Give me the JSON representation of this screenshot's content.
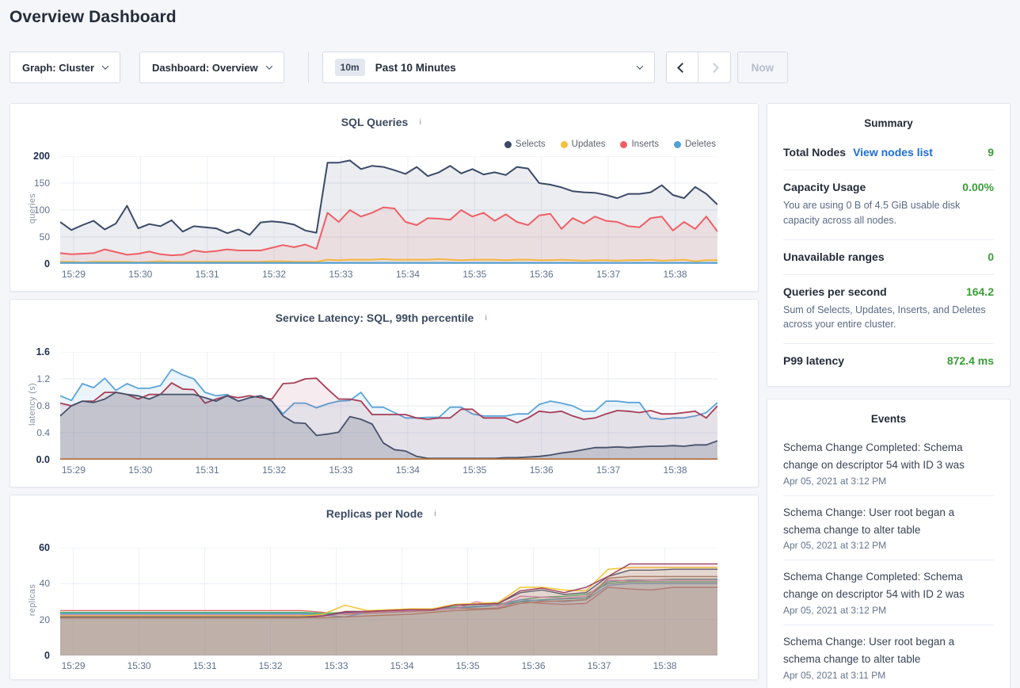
{
  "page": {
    "title": "Overview Dashboard"
  },
  "toolbar": {
    "graph_label": "Graph: Cluster",
    "dashboard_label": "Dashboard: Overview",
    "time_badge": "10m",
    "time_label": "Past 10 Minutes",
    "now_label": "Now"
  },
  "icons": {
    "info": "i"
  },
  "summary": {
    "title": "Summary",
    "rows": [
      {
        "label": "Total Nodes",
        "link": "View nodes list",
        "value": "9"
      },
      {
        "label": "Capacity Usage",
        "value": "0.00%",
        "caption": "You are using 0 B of 4.5 GiB usable disk capacity across all nodes."
      },
      {
        "label": "Unavailable ranges",
        "value": "0"
      },
      {
        "label": "Queries per second",
        "value": "164.2",
        "caption": "Sum of Selects, Updates, Inserts, and Deletes across your entire cluster."
      },
      {
        "label": "P99 latency",
        "value": "872.4 ms"
      }
    ]
  },
  "events": {
    "title": "Events",
    "items": [
      {
        "text": "Schema Change Completed: Schema change on descriptor 54 with ID 3 was",
        "time": "Apr 05, 2021 at 3:12 PM"
      },
      {
        "text": "Schema Change: User root began a schema change to alter table",
        "time": "Apr 05, 2021 at 3:12 PM"
      },
      {
        "text": "Schema Change Completed: Schema change on descriptor 54 with ID 2 was",
        "time": "Apr 05, 2021 at 3:12 PM"
      },
      {
        "text": "Schema Change: User root began a schema change to alter table",
        "time": "Apr 05, 2021 at 3:11 PM"
      }
    ]
  },
  "chart_data": [
    {
      "type": "area",
      "title": "SQL Queries",
      "ylabel": "queries",
      "ylim": [
        0,
        200
      ],
      "yticks": [
        "200",
        "150",
        "100",
        "50",
        "0"
      ],
      "xticks": [
        "15:29",
        "15:30",
        "15:31",
        "15:32",
        "15:33",
        "15:34",
        "15:35",
        "15:36",
        "15:37",
        "15:38"
      ],
      "x_interval_seconds": 10,
      "grid": true,
      "legend": true,
      "legend_position": "top-right",
      "stroke_width": 2,
      "series": [
        {
          "name": "Selects",
          "color": "#3b4a67",
          "fo": 0.1,
          "values": [
            78,
            63,
            72,
            80,
            64,
            75,
            108,
            66,
            74,
            70,
            81,
            60,
            70,
            68,
            66,
            57,
            64,
            54,
            77,
            79,
            77,
            73,
            62,
            58,
            188,
            188,
            192,
            176,
            182,
            180,
            174,
            167,
            180,
            163,
            170,
            182,
            168,
            176,
            166,
            170,
            165,
            180,
            177,
            150,
            147,
            142,
            135,
            133,
            132,
            128,
            122,
            130,
            130,
            133,
            146,
            128,
            122,
            143,
            130,
            110
          ]
        },
        {
          "name": "Updates",
          "color": "#f5c13c",
          "fo": 0.05,
          "values": [
            4,
            4,
            3,
            4,
            4,
            4,
            4,
            3,
            4,
            5,
            4,
            4,
            4,
            4,
            4,
            4,
            4,
            4,
            4,
            5,
            5,
            4,
            4,
            4,
            8,
            7,
            8,
            8,
            8,
            9,
            8,
            8,
            8,
            8,
            9,
            8,
            7,
            8,
            8,
            8,
            7,
            8,
            8,
            7,
            7,
            8,
            7,
            6,
            7,
            7,
            6,
            7,
            7,
            8,
            6,
            7,
            8,
            5,
            7,
            7
          ]
        },
        {
          "name": "Inserts",
          "color": "#ee5f66",
          "fo": 0.1,
          "values": [
            20,
            18,
            19,
            20,
            27,
            22,
            17,
            19,
            23,
            18,
            16,
            17,
            25,
            22,
            24,
            27,
            25,
            25,
            25,
            30,
            35,
            31,
            36,
            28,
            95,
            78,
            100,
            88,
            95,
            105,
            103,
            78,
            72,
            85,
            84,
            82,
            100,
            88,
            95,
            80,
            92,
            78,
            72,
            90,
            93,
            65,
            85,
            75,
            88,
            80,
            78,
            70,
            68,
            85,
            88,
            62,
            78,
            65,
            88,
            60
          ]
        },
        {
          "name": "Deletes",
          "color": "#4ea2d9",
          "fo": 0.05,
          "values": [
            2,
            2,
            2,
            2,
            2,
            2,
            2,
            2,
            2,
            2,
            2,
            2,
            2,
            2,
            2,
            2,
            2,
            2,
            2,
            2,
            2,
            2,
            2,
            2,
            2,
            2,
            2,
            2,
            2,
            2,
            2,
            2,
            2,
            2,
            2,
            2,
            2,
            2,
            2,
            2,
            2,
            2,
            2,
            2,
            2,
            2,
            2,
            2,
            2,
            2,
            2,
            2,
            2,
            2,
            2,
            2,
            2,
            2,
            2,
            2
          ]
        }
      ]
    },
    {
      "type": "area",
      "title": "Service Latency: SQL, 99th percentile",
      "ylabel": "latency (s)",
      "ylim": [
        0,
        1.6
      ],
      "yticks": [
        "1.6",
        "1.2",
        "0.8",
        "0.4",
        "0.0"
      ],
      "xticks": [
        "15:29",
        "15:30",
        "15:31",
        "15:32",
        "15:33",
        "15:34",
        "15:35",
        "15:36",
        "15:37",
        "15:38"
      ],
      "x_interval_seconds": 10,
      "grid": true,
      "legend": false,
      "stroke_width": 1.8,
      "series": [
        {
          "name": "s1",
          "color": "#5ba3d9",
          "fo": 0.12,
          "values": [
            0.95,
            0.88,
            1.13,
            1.07,
            1.21,
            1.03,
            1.13,
            1.06,
            1.06,
            1.1,
            1.34,
            1.26,
            1.2,
            1.0,
            0.95,
            0.97,
            0.87,
            0.92,
            0.95,
            0.87,
            0.68,
            0.84,
            0.84,
            0.77,
            0.83,
            0.87,
            0.88,
            1.0,
            0.78,
            0.78,
            0.7,
            0.62,
            0.62,
            0.63,
            0.63,
            0.78,
            0.78,
            0.68,
            0.65,
            0.65,
            0.65,
            0.68,
            0.68,
            0.82,
            0.87,
            0.84,
            0.8,
            0.72,
            0.72,
            0.87,
            0.87,
            0.85,
            0.85,
            0.62,
            0.6,
            0.62,
            0.62,
            0.65,
            0.7,
            0.85
          ]
        },
        {
          "name": "s2",
          "color": "#a63e56",
          "fo": 0.1,
          "values": [
            0.84,
            0.8,
            0.87,
            0.87,
            1.0,
            1.0,
            0.97,
            0.9,
            0.97,
            0.97,
            1.14,
            1.05,
            1.04,
            0.84,
            0.9,
            0.95,
            0.92,
            0.95,
            0.92,
            0.9,
            1.13,
            1.14,
            1.2,
            1.21,
            1.05,
            0.9,
            0.9,
            0.87,
            0.67,
            0.67,
            0.67,
            0.67,
            0.62,
            0.6,
            0.62,
            0.62,
            0.75,
            0.75,
            0.62,
            0.62,
            0.62,
            0.55,
            0.62,
            0.72,
            0.7,
            0.72,
            0.65,
            0.6,
            0.62,
            0.68,
            0.73,
            0.72,
            0.7,
            0.73,
            0.68,
            0.68,
            0.7,
            0.72,
            0.62,
            0.8
          ]
        },
        {
          "name": "s3",
          "color": "#46526b",
          "fo": 0.2,
          "values": [
            0.65,
            0.8,
            0.87,
            0.85,
            0.9,
            1.0,
            0.97,
            0.95,
            0.9,
            0.97,
            0.97,
            0.97,
            0.97,
            0.92,
            0.87,
            0.95,
            0.87,
            0.92,
            0.95,
            0.87,
            0.65,
            0.55,
            0.54,
            0.36,
            0.38,
            0.41,
            0.64,
            0.6,
            0.53,
            0.25,
            0.15,
            0.13,
            0.05,
            0.02,
            0.02,
            0.02,
            0.02,
            0.02,
            0.02,
            0.02,
            0.03,
            0.03,
            0.04,
            0.05,
            0.07,
            0.1,
            0.12,
            0.15,
            0.18,
            0.18,
            0.19,
            0.18,
            0.19,
            0.2,
            0.2,
            0.21,
            0.2,
            0.22,
            0.22,
            0.28
          ]
        },
        {
          "name": "s4",
          "color": "#b5743f",
          "fo": 0,
          "values": [
            0.01,
            0.01,
            0.01,
            0.01,
            0.01,
            0.01,
            0.01,
            0.01,
            0.01,
            0.01,
            0.01,
            0.01,
            0.01,
            0.01,
            0.01,
            0.01,
            0.01,
            0.01,
            0.01,
            0.01,
            0.01,
            0.01,
            0.01,
            0.01,
            0.01,
            0.01,
            0.01,
            0.01,
            0.01,
            0.01,
            0.01,
            0.01,
            0.01,
            0.01,
            0.01,
            0.01,
            0.01,
            0.01,
            0.01,
            0.01,
            0.01,
            0.01,
            0.01,
            0.01,
            0.01,
            0.01,
            0.01,
            0.01,
            0.01,
            0.01,
            0.01,
            0.01,
            0.01,
            0.01,
            0.01,
            0.01,
            0.01,
            0.01,
            0.01,
            0.01
          ]
        }
      ]
    },
    {
      "type": "area",
      "title": "Replicas per Node",
      "ylabel": "replicas",
      "ylim": [
        0,
        60
      ],
      "yticks": [
        "60",
        "40",
        "20",
        "0"
      ],
      "xticks": [
        "15:29",
        "15:30",
        "15:31",
        "15:32",
        "15:33",
        "15:34",
        "15:35",
        "15:36",
        "15:37",
        "15:38"
      ],
      "x_interval_seconds": 20,
      "grid": true,
      "legend": false,
      "stroke_width": 1.4,
      "series": [
        {
          "name": "n1",
          "color": "#e06c6c",
          "fo": 0.1,
          "values": [
            25,
            25,
            25,
            25,
            25,
            25,
            25,
            25,
            25,
            25,
            25,
            25,
            24,
            23,
            23.5,
            24,
            24.5,
            25,
            26.5,
            26,
            26.5,
            30,
            29,
            28.5,
            29,
            38,
            37,
            36.5,
            38,
            38,
            38
          ]
        },
        {
          "name": "n2",
          "color": "#56b56d",
          "fo": 0.1,
          "values": [
            24,
            24,
            24,
            24,
            24,
            24,
            24,
            24,
            24,
            24,
            24,
            24,
            23.5,
            24,
            24.5,
            25,
            25.5,
            26,
            27,
            27.5,
            28.5,
            31,
            32.5,
            33,
            34,
            40,
            41,
            41,
            41,
            41,
            41
          ]
        },
        {
          "name": "n3",
          "color": "#47a8a2",
          "fo": 0.1,
          "values": [
            23.5,
            23.5,
            23.5,
            23.5,
            23.5,
            23.5,
            23.5,
            23.5,
            23.5,
            23.5,
            23.5,
            23.5,
            23,
            23.5,
            24,
            24.5,
            25,
            25.5,
            26.5,
            27,
            28,
            30,
            31,
            31.5,
            32,
            41,
            42,
            42,
            42.5,
            42.5,
            42.5
          ]
        },
        {
          "name": "n4",
          "color": "#6e9fd0",
          "fo": 0.1,
          "values": [
            23,
            23,
            23,
            23,
            23,
            23,
            23,
            23,
            23,
            23,
            23,
            23,
            22.5,
            21.5,
            24,
            24.5,
            25,
            25.5,
            26.5,
            27.5,
            28,
            31,
            30.5,
            30,
            31,
            39,
            40,
            40,
            40,
            40,
            40
          ]
        },
        {
          "name": "n5",
          "color": "#e08bbf",
          "fo": 0.1,
          "values": [
            22.5,
            22.5,
            22.5,
            22.5,
            22.5,
            22.5,
            22.5,
            22.5,
            22.5,
            22.5,
            22.5,
            22.5,
            22,
            23.5,
            24,
            24.5,
            25,
            25.5,
            26,
            30,
            27.5,
            33,
            32.5,
            32,
            33,
            42,
            41.5,
            42,
            42,
            42,
            42
          ]
        },
        {
          "name": "n6",
          "color": "#f2c029",
          "fo": 0.1,
          "values": [
            22,
            22,
            22,
            22,
            22,
            22,
            22,
            22,
            22,
            22,
            22,
            22,
            23,
            28,
            25,
            25.5,
            26,
            26,
            28.5,
            29,
            29.5,
            38,
            38,
            36.5,
            36,
            48,
            49,
            49,
            49,
            49,
            49
          ]
        },
        {
          "name": "n7",
          "color": "#5a6472",
          "fo": 0.1,
          "values": [
            21.5,
            21.5,
            21.5,
            21.5,
            21.5,
            21.5,
            21.5,
            21.5,
            21.5,
            21.5,
            21.5,
            21.5,
            22,
            24,
            24.5,
            25,
            25.5,
            25.5,
            28,
            28.5,
            29,
            35,
            36.5,
            34,
            35,
            44,
            47.5,
            47.5,
            48,
            48,
            48
          ]
        },
        {
          "name": "n8",
          "color": "#9c3e63",
          "fo": 0.1,
          "values": [
            21,
            21,
            21,
            21,
            21,
            21,
            21,
            21,
            21,
            21,
            21,
            21,
            22,
            24.5,
            24.5,
            25,
            25.5,
            25.5,
            28,
            28.5,
            29,
            36,
            37.5,
            35,
            38,
            44,
            51,
            51,
            51,
            51,
            51
          ]
        },
        {
          "name": "n9",
          "color": "#ad7d68",
          "fo": 0.1,
          "values": [
            21,
            21,
            21,
            21,
            21,
            21,
            21,
            21,
            21,
            21,
            21,
            21,
            21,
            21.5,
            22,
            22.5,
            23,
            24,
            25,
            25.5,
            26,
            29,
            30,
            30.5,
            31,
            43,
            44,
            44,
            44,
            44,
            44
          ]
        }
      ]
    }
  ]
}
